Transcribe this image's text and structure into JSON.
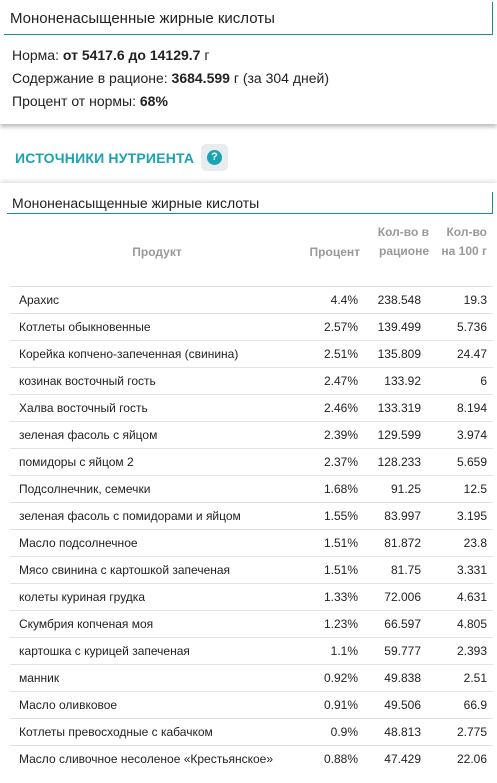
{
  "summary": {
    "title": "Мононенасыщенные жирные кислоты",
    "norm_label": "Норма:",
    "norm_value": "от 5417.6 до 14129.7",
    "norm_unit": "г",
    "content_label": "Содержание в рационе:",
    "content_value": "3684.599",
    "content_unit": "г (за 304 дней)",
    "percent_label": "Процент от нормы:",
    "percent_value": "68%"
  },
  "sources": {
    "title": "ИСТОЧНИКИ НУТРИЕНТА",
    "help_icon": "question-circle-icon",
    "help_symbol": "?"
  },
  "table": {
    "title": "Мононенасыщенные жирные кислоты",
    "headers": {
      "product": "Продукт",
      "percent": "Процент",
      "amount": "Кол-во в рационе",
      "per100": "Кол-во на 100 г"
    },
    "rows": [
      {
        "name": "Арахис",
        "percent": "4.4%",
        "amount": "238.548",
        "per100": "19.3"
      },
      {
        "name": "Котлеты обыкновенные",
        "percent": "2.57%",
        "amount": "139.499",
        "per100": "5.736"
      },
      {
        "name": "Корейка копчено-запеченная (свинина)",
        "percent": "2.51%",
        "amount": "135.809",
        "per100": "24.47"
      },
      {
        "name": "козинак восточный гость",
        "percent": "2.47%",
        "amount": "133.92",
        "per100": "6"
      },
      {
        "name": "Халва восточный гость",
        "percent": "2.46%",
        "amount": "133.319",
        "per100": "8.194"
      },
      {
        "name": "зеленая фасоль с яйцом",
        "percent": "2.39%",
        "amount": "129.599",
        "per100": "3.974"
      },
      {
        "name": "помидоры с яйцом 2",
        "percent": "2.37%",
        "amount": "128.233",
        "per100": "5.659"
      },
      {
        "name": "Подсолнечник, семечки",
        "percent": "1.68%",
        "amount": "91.25",
        "per100": "12.5"
      },
      {
        "name": "зеленая фасоль с помидорами и яйцом",
        "percent": "1.55%",
        "amount": "83.997",
        "per100": "3.195"
      },
      {
        "name": "Масло подсолнечное",
        "percent": "1.51%",
        "amount": "81.872",
        "per100": "23.8"
      },
      {
        "name": "Мясо свинина с картошкой запеченая",
        "percent": "1.51%",
        "amount": "81.75",
        "per100": "3.331"
      },
      {
        "name": "колеты куриная грудка",
        "percent": "1.33%",
        "amount": "72.006",
        "per100": "4.631"
      },
      {
        "name": "Скумбрия копченая моя",
        "percent": "1.23%",
        "amount": "66.597",
        "per100": "4.805"
      },
      {
        "name": "картошка с курицей запеченая",
        "percent": "1.1%",
        "amount": "59.777",
        "per100": "2.393"
      },
      {
        "name": "манник",
        "percent": "0.92%",
        "amount": "49.838",
        "per100": "2.51"
      },
      {
        "name": "Масло оливковое",
        "percent": "0.91%",
        "amount": "49.506",
        "per100": "66.9"
      },
      {
        "name": "Котлеты превосходные с кабачком",
        "percent": "0.9%",
        "amount": "48.813",
        "per100": "2.775"
      },
      {
        "name": "Масло сливочное несоленое «Крестьянское»",
        "percent": "0.88%",
        "amount": "47.429",
        "per100": "22.06"
      }
    ]
  },
  "colors": {
    "accent": "#1aa3b0",
    "border": "#1c8a8f",
    "header_text": "#999999"
  }
}
